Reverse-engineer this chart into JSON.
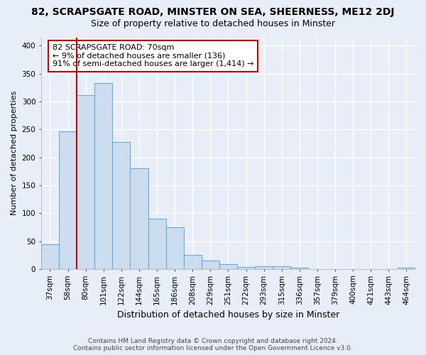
{
  "title_line1": "82, SCRAPSGATE ROAD, MINSTER ON SEA, SHEERNESS, ME12 2DJ",
  "title_line2": "Size of property relative to detached houses in Minster",
  "xlabel": "Distribution of detached houses by size in Minster",
  "ylabel": "Number of detached properties",
  "categories": [
    "37sqm",
    "58sqm",
    "80sqm",
    "101sqm",
    "122sqm",
    "144sqm",
    "165sqm",
    "186sqm",
    "208sqm",
    "229sqm",
    "251sqm",
    "272sqm",
    "293sqm",
    "315sqm",
    "336sqm",
    "357sqm",
    "379sqm",
    "400sqm",
    "421sqm",
    "443sqm",
    "464sqm"
  ],
  "values": [
    44,
    246,
    312,
    333,
    228,
    180,
    90,
    75,
    25,
    15,
    9,
    4,
    5,
    5,
    3,
    0,
    0,
    0,
    0,
    0,
    3
  ],
  "bar_color": "#ccddf0",
  "bar_edge_color": "#6aaad4",
  "ylim": [
    0,
    415
  ],
  "yticks": [
    0,
    50,
    100,
    150,
    200,
    250,
    300,
    350,
    400
  ],
  "vline_x": 1.5,
  "vline_color": "#cc0000",
  "annotation_text": "82 SCRAPSGATE ROAD: 70sqm\n← 9% of detached houses are smaller (136)\n91% of semi-detached houses are larger (1,414) →",
  "annotation_box_facecolor": "#ffffff",
  "annotation_box_edgecolor": "#cc0000",
  "background_color": "#e8eef8",
  "grid_color": "#ffffff",
  "title1_fontsize": 10,
  "title2_fontsize": 9,
  "xlabel_fontsize": 9,
  "ylabel_fontsize": 8,
  "tick_fontsize": 7.5,
  "annotation_fontsize": 8,
  "footer_fontsize": 6.5,
  "footer_line1": "Contains HM Land Registry data © Crown copyright and database right 2024.",
  "footer_line2": "Contains public sector information licensed under the Open Government Licence v3.0."
}
